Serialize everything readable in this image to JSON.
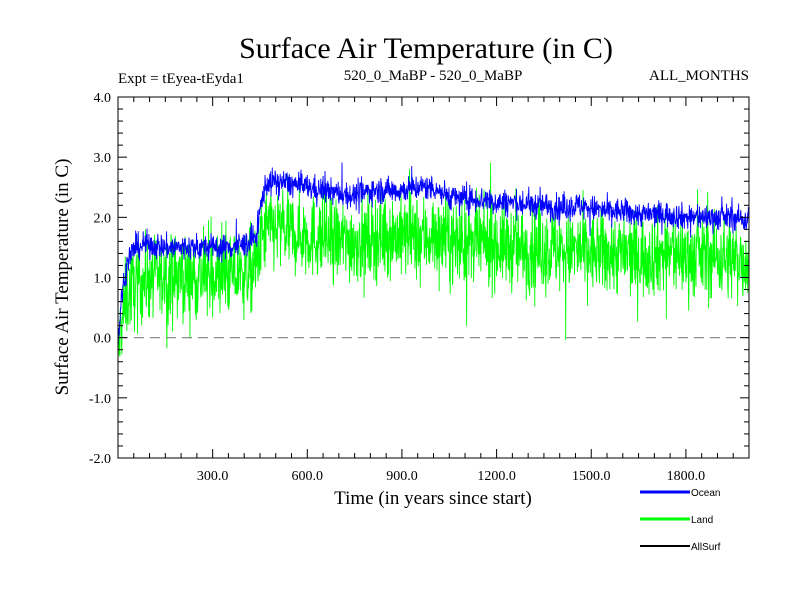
{
  "chart_data": {
    "type": "line",
    "title": "Surface Air Temperature (in C)",
    "subtitle_left": "Expt = tEyea-tEyda1",
    "subtitle_center": "520_0_MaBP - 520_0_MaBP",
    "subtitle_right": "ALL_MONTHS",
    "xlabel": "Time (in years since start)",
    "ylabel": "Surface Air Temperature (in C)",
    "xlim": [
      0,
      2000
    ],
    "ylim": [
      -2.0,
      4.0
    ],
    "x_ticks": [
      300,
      600,
      900,
      1200,
      1500,
      1800
    ],
    "x_tick_labels": [
      "300.0",
      "600.0",
      "900.0",
      "1200.0",
      "1500.0",
      "1800.0"
    ],
    "y_ticks": [
      -2.0,
      -1.0,
      0.0,
      1.0,
      2.0,
      3.0,
      4.0
    ],
    "y_tick_labels": [
      "-2.0",
      "-1.0",
      "0.0",
      "1.0",
      "2.0",
      "3.0",
      "4.0"
    ],
    "zero_line": 0.0,
    "legend_position": "bottom-right",
    "series": [
      {
        "name": "Land",
        "color": "#00ff00",
        "x": [
          0,
          10,
          20,
          30,
          40,
          60,
          80,
          100,
          150,
          200,
          250,
          300,
          350,
          400,
          420,
          440,
          450,
          460,
          470,
          500,
          550,
          600,
          650,
          700,
          750,
          800,
          850,
          900,
          950,
          1000,
          1050,
          1100,
          1150,
          1200,
          1250,
          1300,
          1350,
          1400,
          1450,
          1500,
          1550,
          1600,
          1650,
          1700,
          1750,
          1800,
          1850,
          1900,
          1950,
          2000
        ],
        "mean": [
          -0.3,
          0.2,
          0.5,
          0.7,
          0.8,
          0.9,
          0.95,
          1.0,
          1.0,
          1.0,
          1.0,
          1.05,
          1.05,
          1.05,
          1.1,
          1.2,
          1.5,
          1.7,
          1.8,
          1.8,
          1.75,
          1.7,
          1.65,
          1.6,
          1.6,
          1.65,
          1.7,
          1.7,
          1.65,
          1.7,
          1.6,
          1.55,
          1.55,
          1.55,
          1.5,
          1.45,
          1.5,
          1.45,
          1.45,
          1.4,
          1.4,
          1.4,
          1.35,
          1.4,
          1.4,
          1.35,
          1.35,
          1.35,
          1.3,
          1.3
        ],
        "spread": 0.9
      },
      {
        "name": "Ocean",
        "color": "#0000ff",
        "x": [
          0,
          10,
          20,
          30,
          40,
          60,
          80,
          100,
          150,
          200,
          250,
          300,
          350,
          400,
          420,
          440,
          450,
          460,
          470,
          500,
          550,
          600,
          650,
          700,
          750,
          800,
          850,
          900,
          950,
          1000,
          1050,
          1100,
          1150,
          1200,
          1250,
          1300,
          1350,
          1400,
          1450,
          1500,
          1550,
          1600,
          1650,
          1700,
          1750,
          1800,
          1850,
          1900,
          1950,
          2000
        ],
        "mean": [
          -0.1,
          0.6,
          1.0,
          1.25,
          1.4,
          1.5,
          1.55,
          1.55,
          1.5,
          1.5,
          1.5,
          1.5,
          1.5,
          1.55,
          1.6,
          1.7,
          2.1,
          2.4,
          2.55,
          2.6,
          2.55,
          2.5,
          2.45,
          2.4,
          2.35,
          2.45,
          2.45,
          2.45,
          2.5,
          2.5,
          2.35,
          2.3,
          2.3,
          2.25,
          2.25,
          2.2,
          2.2,
          2.15,
          2.2,
          2.15,
          2.1,
          2.1,
          2.05,
          2.05,
          2.05,
          2.0,
          2.0,
          2.0,
          2.0,
          1.95
        ],
        "spread": 0.28
      },
      {
        "name": "AllSurf",
        "color": "#000000",
        "x": [],
        "mean": [],
        "spread": 0
      }
    ]
  }
}
